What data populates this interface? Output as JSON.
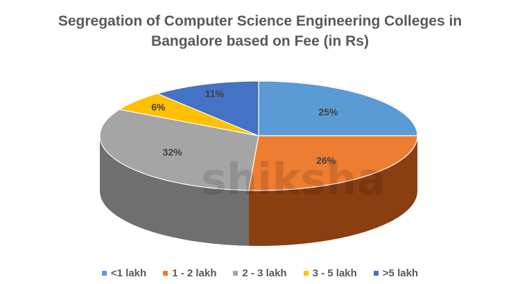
{
  "chart_data": {
    "type": "pie",
    "style": "3d",
    "title": "Segregation of Computer Science Engineering Colleges in Bangalore based on Fee (in Rs)",
    "title_lines": [
      "Segregation of Computer Science Engineering Colleges in",
      "Bangalore based on Fee (in Rs)"
    ],
    "categories": [
      "<1 lakh",
      "1 - 2 lakh",
      "2 - 3 lakh",
      "3 - 5 lakh",
      ">5 lakh"
    ],
    "values": [
      25,
      26,
      32,
      6,
      11
    ],
    "labels": [
      "25%",
      "26%",
      "32%",
      "6%",
      "11%"
    ],
    "colors": [
      "#5B9BD5",
      "#ED7D31",
      "#A5A5A5",
      "#FFC000",
      "#4472C4"
    ],
    "side_colors": [
      "#3f77aa",
      "#8a3f12",
      "#6f6f6f",
      "#b38600",
      "#2e508c"
    ],
    "legend_position": "bottom"
  },
  "watermark": "shiksha"
}
